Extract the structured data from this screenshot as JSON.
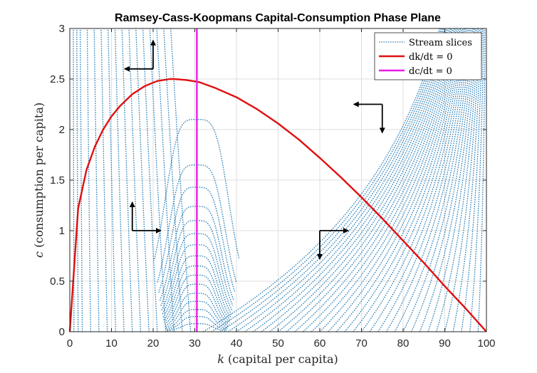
{
  "chart_data": {
    "type": "line",
    "title": "Ramsey-Cass-Koopmans Capital-Consumption Phase Plane",
    "xlabel_var": "k",
    "xlabel_rest": " (capital per capita)",
    "ylabel_var": "c",
    "ylabel_rest": " (consumption per capita)",
    "xlim": [
      0,
      100
    ],
    "ylim": [
      0,
      3
    ],
    "xticks": [
      0,
      10,
      20,
      30,
      40,
      50,
      60,
      70,
      80,
      90,
      100
    ],
    "yticks": [
      0,
      0.5,
      1,
      1.5,
      2,
      2.5,
      3
    ],
    "ytick_labels": [
      "0",
      "0.5",
      "1",
      "1.5",
      "2",
      "2.5",
      "3"
    ],
    "grid": true,
    "legend_position": "top-right",
    "legend": [
      {
        "label": "Stream slices",
        "style": "dotted",
        "color": "#2a7fb8"
      },
      {
        "label": "dk/dt = 0",
        "style": "solid",
        "color": "#e01010"
      },
      {
        "label": "dc/dt = 0",
        "style": "solid",
        "color": "#e81ce8"
      }
    ],
    "series": [
      {
        "name": "dk/dt = 0",
        "color": "#e01010",
        "x": [
          0,
          2,
          4,
          6,
          8,
          10,
          12,
          15,
          18,
          21,
          24,
          25,
          28,
          31,
          35,
          40,
          45,
          50,
          55,
          60,
          65,
          70,
          75,
          80,
          85,
          90,
          95,
          100
        ],
        "y": [
          0,
          1.22,
          1.6,
          1.83,
          2.0,
          2.13,
          2.23,
          2.35,
          2.43,
          2.48,
          2.5,
          2.5,
          2.49,
          2.47,
          2.41,
          2.32,
          2.2,
          2.06,
          1.9,
          1.72,
          1.53,
          1.33,
          1.12,
          0.9,
          0.68,
          0.45,
          0.23,
          0
        ]
      },
      {
        "name": "dc/dt = 0",
        "color": "#e81ce8",
        "x": [
          30.5,
          30.5
        ],
        "y": [
          0,
          3
        ]
      }
    ],
    "stream_color": "#2a7fb8",
    "stream_right_starts": [
      32,
      34,
      36,
      38,
      40,
      42,
      44,
      46,
      48,
      50,
      52,
      54,
      56,
      58,
      60,
      62,
      64,
      66,
      68,
      70,
      72,
      74,
      76,
      78,
      80,
      82,
      84,
      86,
      88,
      90,
      92,
      94,
      96,
      98
    ],
    "stream_left_starts": [
      1,
      2,
      3,
      5,
      7,
      9,
      11,
      13,
      15,
      17,
      19,
      21,
      23,
      25,
      27,
      29
    ],
    "stream_peaks": [
      0.08,
      0.15,
      0.22,
      0.3,
      0.38,
      0.47,
      0.56,
      0.65,
      0.75,
      0.86,
      0.97,
      1.1,
      1.24,
      1.43,
      1.65,
      2.1
    ],
    "direction_arrows": [
      {
        "x": 20,
        "y": 2.6,
        "dx": -1,
        "dy": 1
      },
      {
        "x": 15,
        "y": 1.0,
        "dx": 1,
        "dy": 1
      },
      {
        "x": 60,
        "y": 1.0,
        "dx": 1,
        "dy": -1
      },
      {
        "x": 75,
        "y": 2.25,
        "dx": -1,
        "dy": -1
      }
    ]
  }
}
